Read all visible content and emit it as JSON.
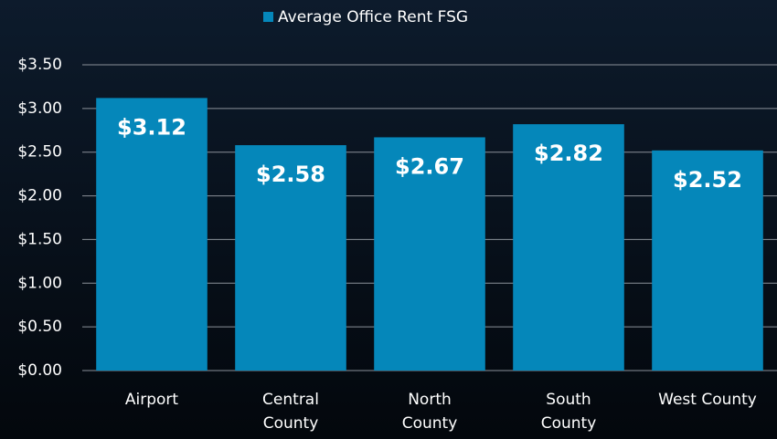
{
  "chart_data": {
    "type": "bar",
    "categories": [
      "Airport",
      "Central\nCounty",
      "North\nCounty",
      "South\nCounty",
      "West County"
    ],
    "series": [
      {
        "name": "Average Office Rent FSG",
        "color": "#0587ba",
        "values": [
          3.12,
          2.58,
          2.67,
          2.82,
          2.52
        ],
        "value_labels": [
          "$3.12",
          "$2.58",
          "$2.67",
          "$2.82",
          "$2.52"
        ]
      }
    ],
    "ylim": [
      0,
      3.5
    ],
    "yticks": [
      {
        "value": 0,
        "label": "$0.00"
      },
      {
        "value": 0.5,
        "label": "$0.50"
      },
      {
        "value": 1,
        "label": "$1.00"
      },
      {
        "value": 1.5,
        "label": "$1.50"
      },
      {
        "value": 2,
        "label": "$2.00"
      },
      {
        "value": 2.5,
        "label": "$2.50"
      },
      {
        "value": 3,
        "label": "$3.00"
      },
      {
        "value": 3.5,
        "label": "$3.50"
      }
    ],
    "grid": true,
    "legend": "top"
  }
}
